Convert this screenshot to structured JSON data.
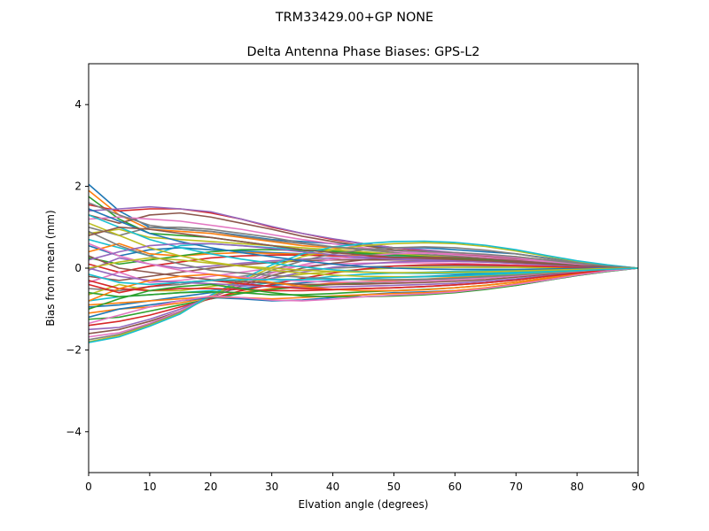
{
  "figure": {
    "suptitle": "TRM33429.00+GP  NONE"
  },
  "chart_data": {
    "type": "line",
    "title": "Delta Antenna Phase Biases: GPS-L2",
    "xlabel": "Elvation angle (degrees)",
    "ylabel": "Bias from mean (mm)",
    "xlim": [
      0,
      90
    ],
    "ylim": [
      -5,
      5
    ],
    "x_ticks": [
      0,
      10,
      20,
      30,
      40,
      50,
      60,
      70,
      80,
      90
    ],
    "y_ticks": [
      -4,
      -2,
      0,
      2,
      4
    ],
    "x_tick_labels": [
      "0",
      "10",
      "20",
      "30",
      "40",
      "50",
      "60",
      "70",
      "80",
      "90"
    ],
    "y_tick_labels": [
      "−4",
      "−2",
      "0",
      "2",
      "4"
    ],
    "grid": false,
    "legend": "none",
    "palette": [
      "#1f77b4",
      "#ff7f0e",
      "#2ca02c",
      "#d62728",
      "#9467bd",
      "#8c564b",
      "#e377c2",
      "#7f7f7f",
      "#bcbd22",
      "#17becf"
    ],
    "x": [
      0,
      5,
      10,
      15,
      20,
      25,
      30,
      35,
      40,
      45,
      50,
      55,
      60,
      65,
      70,
      75,
      80,
      85,
      90
    ],
    "series": [
      {
        "values": [
          2.05,
          1.4,
          1.0,
          0.95,
          0.9,
          0.8,
          0.7,
          0.65,
          0.6,
          0.55,
          0.5,
          0.5,
          0.45,
          0.4,
          0.35,
          0.25,
          0.15,
          0.07,
          0
        ]
      },
      {
        "values": [
          1.9,
          1.3,
          0.95,
          0.9,
          0.85,
          0.75,
          0.65,
          0.55,
          0.5,
          0.45,
          0.42,
          0.4,
          0.38,
          0.33,
          0.28,
          0.2,
          0.12,
          0.05,
          0
        ]
      },
      {
        "values": [
          1.75,
          1.2,
          0.85,
          0.8,
          0.75,
          0.65,
          0.55,
          0.45,
          0.42,
          0.38,
          0.35,
          0.33,
          0.3,
          0.27,
          0.22,
          0.17,
          0.1,
          0.05,
          0
        ]
      },
      {
        "values": [
          1.55,
          1.4,
          1.45,
          1.45,
          1.35,
          1.2,
          1.0,
          0.85,
          0.7,
          0.6,
          0.5,
          0.42,
          0.35,
          0.3,
          0.25,
          0.18,
          0.12,
          0.05,
          0
        ]
      },
      {
        "values": [
          1.4,
          1.45,
          1.5,
          1.45,
          1.38,
          1.2,
          1.02,
          0.85,
          0.72,
          0.6,
          0.5,
          0.45,
          0.38,
          0.33,
          0.27,
          0.2,
          0.12,
          0.05,
          0
        ]
      },
      {
        "values": [
          1.3,
          1.1,
          1.3,
          1.35,
          1.25,
          1.1,
          0.95,
          0.78,
          0.65,
          0.55,
          0.45,
          0.4,
          0.35,
          0.3,
          0.23,
          0.17,
          0.1,
          0.05,
          0
        ]
      },
      {
        "values": [
          1.2,
          1.25,
          1.2,
          1.15,
          1.05,
          0.95,
          0.82,
          0.7,
          0.6,
          0.5,
          0.42,
          0.37,
          0.32,
          0.27,
          0.2,
          0.15,
          0.1,
          0.05,
          0
        ]
      },
      {
        "values": [
          1.0,
          0.8,
          1.0,
          1.0,
          0.95,
          0.85,
          0.75,
          0.62,
          0.52,
          0.45,
          0.38,
          0.33,
          0.28,
          0.23,
          0.18,
          0.13,
          0.08,
          0.04,
          0
        ]
      },
      {
        "values": [
          0.85,
          0.95,
          0.75,
          0.7,
          0.65,
          0.6,
          0.55,
          0.5,
          0.45,
          0.4,
          0.35,
          0.3,
          0.26,
          0.22,
          0.17,
          0.12,
          0.08,
          0.04,
          0
        ]
      },
      {
        "values": [
          0.7,
          0.5,
          0.3,
          0.55,
          0.6,
          0.55,
          0.5,
          0.45,
          0.4,
          0.35,
          0.3,
          0.27,
          0.24,
          0.2,
          0.16,
          0.12,
          0.08,
          0.04,
          0
        ]
      },
      {
        "values": [
          0.55,
          0.3,
          0.45,
          0.5,
          0.45,
          0.42,
          0.38,
          0.35,
          0.32,
          0.3,
          0.27,
          0.25,
          0.22,
          0.19,
          0.15,
          0.11,
          0.07,
          0.03,
          0
        ]
      },
      {
        "values": [
          0.4,
          0.6,
          0.35,
          0.3,
          0.35,
          0.38,
          0.36,
          0.34,
          0.32,
          0.3,
          0.27,
          0.25,
          0.22,
          0.18,
          0.14,
          0.1,
          0.07,
          0.03,
          0
        ]
      },
      {
        "values": [
          0.25,
          0.1,
          0.2,
          0.3,
          0.4,
          0.45,
          0.45,
          0.43,
          0.4,
          0.36,
          0.32,
          0.28,
          0.24,
          0.2,
          0.15,
          0.11,
          0.07,
          0.03,
          0
        ]
      },
      {
        "values": [
          0.1,
          -0.1,
          0.05,
          0.15,
          0.25,
          0.3,
          0.32,
          0.32,
          0.3,
          0.28,
          0.26,
          0.24,
          0.21,
          0.18,
          0.14,
          0.1,
          0.06,
          0.03,
          0
        ]
      },
      {
        "values": [
          -0.05,
          0.25,
          0.1,
          0.0,
          0.05,
          0.12,
          0.18,
          0.22,
          0.25,
          0.24,
          0.23,
          0.22,
          0.2,
          0.17,
          0.13,
          0.09,
          0.06,
          0.03,
          0
        ]
      },
      {
        "values": [
          -0.2,
          -0.3,
          -0.2,
          -0.1,
          0.0,
          0.08,
          0.14,
          0.18,
          0.2,
          0.2,
          0.2,
          0.19,
          0.17,
          0.15,
          0.12,
          0.08,
          0.05,
          0.02,
          0
        ]
      },
      {
        "values": [
          -0.35,
          -0.1,
          -0.35,
          -0.3,
          -0.2,
          -0.1,
          0.0,
          0.05,
          0.1,
          0.12,
          0.13,
          0.13,
          0.12,
          0.1,
          0.08,
          0.06,
          0.04,
          0.02,
          0
        ]
      },
      {
        "values": [
          -0.5,
          -0.55,
          -0.45,
          -0.4,
          -0.3,
          -0.2,
          -0.1,
          -0.05,
          0.0,
          0.03,
          0.05,
          0.06,
          0.06,
          0.05,
          0.04,
          0.03,
          0.02,
          0.01,
          0
        ]
      },
      {
        "values": [
          -0.65,
          -0.4,
          -0.55,
          -0.55,
          -0.45,
          -0.35,
          -0.25,
          -0.15,
          -0.08,
          -0.03,
          0.0,
          0.02,
          0.02,
          0.02,
          0.02,
          0.01,
          0.01,
          0.0,
          0
        ]
      },
      {
        "values": [
          -0.8,
          -0.7,
          -0.65,
          -0.6,
          -0.55,
          -0.45,
          -0.35,
          -0.28,
          -0.2,
          -0.15,
          -0.12,
          -0.1,
          -0.08,
          -0.06,
          -0.05,
          -0.04,
          -0.03,
          -0.01,
          0
        ]
      },
      {
        "values": [
          -0.95,
          -0.9,
          -0.8,
          -0.7,
          -0.6,
          -0.5,
          -0.42,
          -0.36,
          -0.3,
          -0.25,
          -0.22,
          -0.2,
          -0.17,
          -0.14,
          -0.1,
          -0.07,
          -0.05,
          -0.02,
          0
        ]
      },
      {
        "values": [
          -1.1,
          -1.0,
          -0.95,
          -0.85,
          -0.72,
          -0.6,
          -0.5,
          -0.43,
          -0.37,
          -0.33,
          -0.3,
          -0.27,
          -0.23,
          -0.19,
          -0.15,
          -0.1,
          -0.06,
          -0.03,
          0
        ]
      },
      {
        "values": [
          -1.25,
          -1.2,
          -1.05,
          -0.9,
          -0.75,
          -0.62,
          -0.52,
          -0.45,
          -0.4,
          -0.36,
          -0.33,
          -0.3,
          -0.26,
          -0.21,
          -0.16,
          -0.11,
          -0.07,
          -0.03,
          0
        ]
      },
      {
        "values": [
          -1.4,
          -1.3,
          -1.15,
          -0.95,
          -0.75,
          -0.55,
          -0.4,
          -0.25,
          -0.12,
          -0.02,
          0.05,
          0.08,
          0.09,
          0.08,
          0.06,
          0.04,
          0.02,
          0.01,
          0
        ]
      },
      {
        "values": [
          -1.5,
          -1.45,
          -1.25,
          -1.0,
          -0.7,
          -0.45,
          -0.25,
          -0.1,
          0.02,
          0.1,
          0.15,
          0.17,
          0.17,
          0.15,
          0.12,
          0.08,
          0.05,
          0.02,
          0
        ]
      },
      {
        "values": [
          -1.6,
          -1.5,
          -1.3,
          -1.05,
          -0.72,
          -0.42,
          -0.18,
          0.0,
          0.12,
          0.2,
          0.25,
          0.27,
          0.26,
          0.23,
          0.18,
          0.12,
          0.07,
          0.03,
          0
        ]
      },
      {
        "values": [
          -1.68,
          -1.58,
          -1.35,
          -1.05,
          -0.7,
          -0.4,
          -0.12,
          0.08,
          0.22,
          0.3,
          0.35,
          0.37,
          0.36,
          0.32,
          0.25,
          0.17,
          0.1,
          0.04,
          0
        ]
      },
      {
        "values": [
          -1.75,
          -1.62,
          -1.38,
          -1.08,
          -0.7,
          -0.35,
          -0.05,
          0.18,
          0.35,
          0.45,
          0.5,
          0.52,
          0.5,
          0.44,
          0.35,
          0.24,
          0.14,
          0.06,
          0
        ]
      },
      {
        "values": [
          -1.8,
          -1.65,
          -1.4,
          -1.1,
          -0.68,
          -0.32,
          0.02,
          0.28,
          0.45,
          0.55,
          0.6,
          0.62,
          0.6,
          0.53,
          0.42,
          0.29,
          0.17,
          0.07,
          0
        ]
      },
      {
        "values": [
          -1.82,
          -1.68,
          -1.42,
          -1.12,
          -0.66,
          -0.28,
          0.08,
          0.35,
          0.52,
          0.6,
          0.65,
          0.66,
          0.63,
          0.56,
          0.45,
          0.31,
          0.18,
          0.08,
          0
        ]
      },
      {
        "values": [
          -1.2,
          -1.0,
          -0.9,
          -0.8,
          -0.72,
          -0.75,
          -0.8,
          -0.78,
          -0.72,
          -0.65,
          -0.6,
          -0.58,
          -0.55,
          -0.5,
          -0.42,
          -0.3,
          -0.18,
          -0.08,
          0
        ]
      },
      {
        "values": [
          -0.9,
          -0.85,
          -0.8,
          -0.75,
          -0.7,
          -0.72,
          -0.75,
          -0.72,
          -0.68,
          -0.65,
          -0.62,
          -0.6,
          -0.55,
          -0.48,
          -0.38,
          -0.27,
          -0.16,
          -0.07,
          0
        ]
      },
      {
        "values": [
          -0.6,
          -0.7,
          -0.65,
          -0.6,
          -0.58,
          -0.6,
          -0.65,
          -0.65,
          -0.62,
          -0.58,
          -0.55,
          -0.52,
          -0.48,
          -0.42,
          -0.34,
          -0.24,
          -0.14,
          -0.06,
          0
        ]
      },
      {
        "values": [
          -0.3,
          -0.5,
          -0.55,
          -0.5,
          -0.5,
          -0.52,
          -0.55,
          -0.55,
          -0.53,
          -0.5,
          -0.48,
          -0.45,
          -0.41,
          -0.36,
          -0.29,
          -0.2,
          -0.12,
          -0.05,
          0
        ]
      },
      {
        "values": [
          0.0,
          -0.2,
          -0.3,
          -0.35,
          -0.38,
          -0.42,
          -0.45,
          -0.47,
          -0.46,
          -0.44,
          -0.42,
          -0.4,
          -0.37,
          -0.32,
          -0.26,
          -0.18,
          -0.11,
          -0.05,
          0
        ]
      },
      {
        "values": [
          0.3,
          0.0,
          -0.1,
          -0.2,
          -0.28,
          -0.33,
          -0.37,
          -0.4,
          -0.4,
          -0.39,
          -0.37,
          -0.35,
          -0.32,
          -0.28,
          -0.22,
          -0.15,
          -0.09,
          -0.04,
          0
        ]
      },
      {
        "values": [
          0.6,
          0.3,
          0.1,
          -0.05,
          -0.15,
          -0.22,
          -0.28,
          -0.32,
          -0.34,
          -0.34,
          -0.33,
          -0.31,
          -0.28,
          -0.24,
          -0.19,
          -0.13,
          -0.08,
          -0.03,
          0
        ]
      },
      {
        "values": [
          0.9,
          0.55,
          0.3,
          0.1,
          -0.05,
          -0.12,
          -0.18,
          -0.22,
          -0.26,
          -0.28,
          -0.28,
          -0.27,
          -0.25,
          -0.21,
          -0.17,
          -0.12,
          -0.07,
          -0.03,
          0
        ]
      },
      {
        "values": [
          1.1,
          0.8,
          0.5,
          0.3,
          0.15,
          0.05,
          -0.05,
          -0.12,
          -0.17,
          -0.2,
          -0.21,
          -0.21,
          -0.2,
          -0.17,
          -0.14,
          -0.1,
          -0.06,
          -0.03,
          0
        ]
      },
      {
        "values": [
          1.3,
          1.0,
          0.7,
          0.5,
          0.35,
          0.22,
          0.12,
          0.03,
          -0.04,
          -0.09,
          -0.12,
          -0.13,
          -0.13,
          -0.12,
          -0.1,
          -0.07,
          -0.04,
          -0.02,
          0
        ]
      },
      {
        "values": [
          1.45,
          1.15,
          0.85,
          0.65,
          0.5,
          0.38,
          0.28,
          0.18,
          0.1,
          0.04,
          0.0,
          -0.02,
          -0.03,
          -0.03,
          -0.03,
          -0.02,
          -0.01,
          0.0,
          0
        ]
      },
      {
        "values": [
          -0.8,
          -0.5,
          -0.3,
          -0.2,
          -0.15,
          -0.25,
          -0.35,
          -0.45,
          -0.52,
          -0.55,
          -0.55,
          -0.53,
          -0.48,
          -0.42,
          -0.34,
          -0.24,
          -0.14,
          -0.06,
          0
        ]
      },
      {
        "values": [
          -1.0,
          -0.75,
          -0.55,
          -0.45,
          -0.4,
          -0.5,
          -0.6,
          -0.68,
          -0.7,
          -0.7,
          -0.68,
          -0.65,
          -0.6,
          -0.52,
          -0.42,
          -0.3,
          -0.18,
          -0.08,
          0
        ]
      },
      {
        "values": [
          -0.4,
          -0.6,
          -0.45,
          -0.35,
          -0.3,
          -0.38,
          -0.45,
          -0.5,
          -0.52,
          -0.5,
          -0.48,
          -0.45,
          -0.41,
          -0.36,
          -0.29,
          -0.2,
          -0.12,
          -0.05,
          0
        ]
      },
      {
        "values": [
          0.2,
          0.4,
          0.55,
          0.6,
          0.6,
          0.55,
          0.48,
          0.4,
          0.33,
          0.27,
          0.22,
          0.2,
          0.18,
          0.16,
          0.13,
          0.09,
          0.06,
          0.03,
          0
        ]
      },
      {
        "values": [
          0.8,
          1.0,
          0.95,
          0.85,
          0.75,
          0.65,
          0.55,
          0.45,
          0.38,
          0.32,
          0.27,
          0.24,
          0.21,
          0.18,
          0.14,
          0.1,
          0.06,
          0.03,
          0
        ]
      },
      {
        "values": [
          -1.35,
          -1.15,
          -0.95,
          -0.8,
          -0.68,
          -0.72,
          -0.78,
          -0.8,
          -0.76,
          -0.7,
          -0.66,
          -0.63,
          -0.58,
          -0.5,
          -0.4,
          -0.29,
          -0.17,
          -0.07,
          0
        ]
      },
      {
        "values": [
          1.6,
          1.3,
          1.05,
          0.95,
          0.9,
          0.78,
          0.68,
          0.6,
          0.52,
          0.47,
          0.43,
          0.41,
          0.38,
          0.34,
          0.28,
          0.2,
          0.12,
          0.05,
          0
        ]
      },
      {
        "values": [
          0.0,
          0.15,
          0.25,
          0.2,
          0.12,
          0.05,
          0.0,
          -0.05,
          -0.08,
          -0.1,
          -0.11,
          -0.11,
          -0.1,
          -0.09,
          -0.07,
          -0.05,
          -0.03,
          -0.01,
          0
        ]
      },
      {
        "values": [
          -0.15,
          -0.35,
          -0.4,
          -0.35,
          -0.3,
          -0.28,
          -0.28,
          -0.28,
          -0.27,
          -0.25,
          -0.23,
          -0.21,
          -0.19,
          -0.16,
          -0.13,
          -0.09,
          -0.06,
          -0.03,
          0
        ]
      }
    ]
  }
}
